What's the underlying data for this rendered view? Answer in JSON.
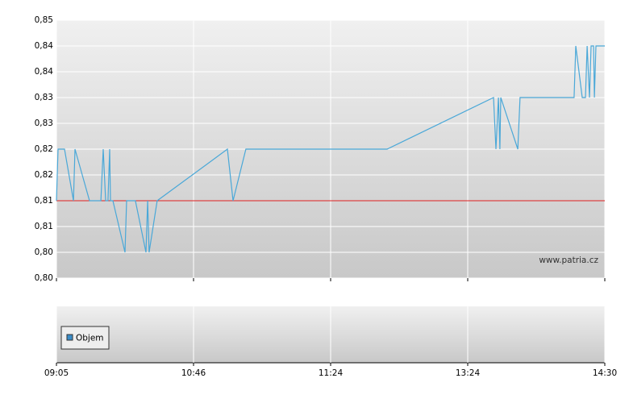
{
  "chart_data": {
    "type": "line",
    "x": [
      0,
      0.012,
      0.059,
      0.124,
      0.135,
      0.241,
      0.324,
      0.341,
      0.359,
      0.376,
      0.388,
      0.394,
      0.412,
      0.5,
      0.512,
      0.576,
      0.653,
      0.665,
      0.676,
      0.735,
      1.247,
      1.288,
      1.382,
      2.412,
      3.188,
      3.206,
      3.224,
      3.235,
      3.241,
      3.365,
      3.382,
      3.776,
      3.788,
      3.835,
      3.859,
      3.871,
      3.888,
      3.9,
      3.918,
      3.924,
      3.935,
      4
    ],
    "series": [
      {
        "color": "#4aa8d8",
        "values": [
          0.815,
          0.825,
          0.825,
          0.815,
          0.825,
          0.815,
          0.815,
          0.825,
          0.815,
          0.815,
          0.825,
          0.815,
          0.815,
          0.805,
          0.815,
          0.815,
          0.805,
          0.815,
          0.805,
          0.815,
          0.825,
          0.815,
          0.825,
          0.825,
          0.835,
          0.825,
          0.835,
          0.825,
          0.835,
          0.825,
          0.835,
          0.835,
          0.845,
          0.835,
          0.835,
          0.845,
          0.835,
          0.845,
          0.845,
          0.835,
          0.845,
          0.845
        ]
      }
    ],
    "reference_line": {
      "value": 0.815,
      "color": "#e02020"
    },
    "xlim": [
      0,
      4
    ],
    "xticks": [
      {
        "value": 0,
        "label": "09:05"
      },
      {
        "value": 1,
        "label": "10:46"
      },
      {
        "value": 2,
        "label": "11:24"
      },
      {
        "value": 3,
        "label": "13:24"
      },
      {
        "value": 4,
        "label": "14:30"
      }
    ],
    "ylim": [
      0.8,
      0.85
    ],
    "yticks": [
      {
        "value": 0.8,
        "label": "0,80"
      },
      {
        "value": 0.805,
        "label": "0,80"
      },
      {
        "value": 0.81,
        "label": "0,81"
      },
      {
        "value": 0.815,
        "label": "0,81"
      },
      {
        "value": 0.82,
        "label": "0,82"
      },
      {
        "value": 0.825,
        "label": "0,82"
      },
      {
        "value": 0.83,
        "label": "0,83"
      },
      {
        "value": 0.835,
        "label": "0,83"
      },
      {
        "value": 0.84,
        "label": "0,84"
      },
      {
        "value": 0.845,
        "label": "0,84"
      },
      {
        "value": 0.85,
        "label": "0,85"
      }
    ],
    "grid": true,
    "watermark": "www.patria.cz",
    "volume_panel": {
      "legend": "Objem",
      "color": "#3a8cc8"
    }
  }
}
